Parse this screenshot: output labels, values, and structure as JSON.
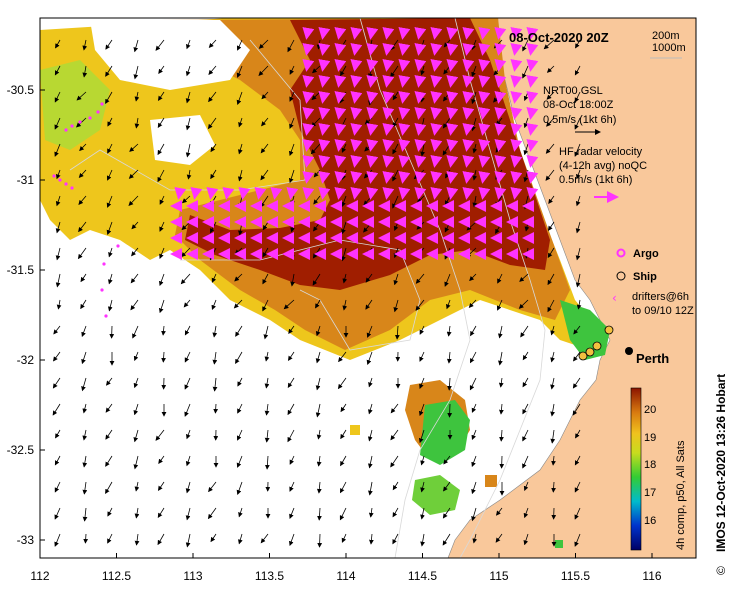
{
  "map": {
    "title": "08-Oct-2020 20Z",
    "depth_labels": [
      "200m",
      "1000m"
    ],
    "credit": "IMOS 12-Oct-2020 13:26 Hobart",
    "copyright_symbol": "©",
    "x_ticks": [
      "112",
      "112.5",
      "113",
      "113.5",
      "114",
      "114.5",
      "115",
      "115.5",
      "116"
    ],
    "y_ticks": [
      "-30.5",
      "-31",
      "-31.5",
      "-32",
      "-32.5",
      "-33"
    ],
    "city": "Perth",
    "wind_legend": {
      "lines": [
        "NRT00 GSL",
        "08-Oct 18:00Z",
        "0.5m/s (1kt 6h)"
      ]
    },
    "radar_legend": {
      "lines": [
        "HF radar velocity",
        "(4-12h avg) noQC",
        "0.5m/s (1kt 6h)"
      ]
    },
    "markers_legend": {
      "argo": "Argo",
      "ship": "Ship",
      "drifters": [
        "drifters@6h",
        "to 09/10 12Z"
      ]
    },
    "colorbar": {
      "ticks": [
        "20",
        "19",
        "18",
        "17",
        "16"
      ],
      "label": "4h comp, p50, All Sats"
    },
    "colors": {
      "land": "#f9c89b",
      "radar": "#ff33ff",
      "sst_hot": "#a01e00",
      "sst_warm": "#d8861a",
      "sst_yellow": "#eec61c",
      "sst_green": "#3ec43e"
    }
  }
}
